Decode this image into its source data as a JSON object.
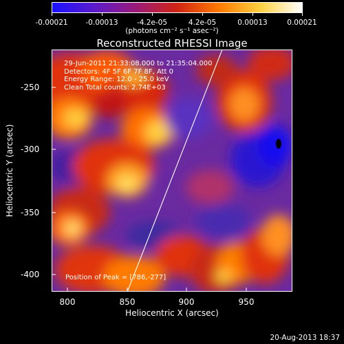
{
  "colorbar": {
    "tick_labels": [
      "-0.00021",
      "-0.00013",
      "-4.2e-05",
      "4.2e-05",
      "0.00013",
      "0.00021"
    ],
    "units": "(photons cm⁻² s⁻¹ asec⁻²)",
    "colors": [
      "#1a12ff",
      "#5a1acc",
      "#9a1a7a",
      "#d12414",
      "#ff7a00",
      "#ffd040",
      "#ffffff"
    ]
  },
  "plot": {
    "title": "Reconstructed RHESSI Image",
    "info": {
      "line1": "29-Jun-2011 21:33:08.000 to 21:35:04.000",
      "line2": "Detectors: 4F 5F 6F 7F 8F, Att 0",
      "line3": "Energy Range: 12.0 - 25.0 keV",
      "line4": "Clean     Total counts: 2.74E+03"
    },
    "peak_label": "Position of Peak = [786,-277]",
    "x_axis": {
      "label": "Heliocentric X (arcsec)",
      "ticks": [
        "800",
        "850",
        "900",
        "950"
      ],
      "range": [
        789,
        981
      ]
    },
    "y_axis": {
      "label": "Heliocentric Y (arcsec)",
      "ticks": [
        "-250",
        "-300",
        "-350",
        "-400"
      ],
      "range": [
        -418,
        -225
      ]
    }
  },
  "footer": {
    "date": "20-Aug-2013 18:37"
  }
}
